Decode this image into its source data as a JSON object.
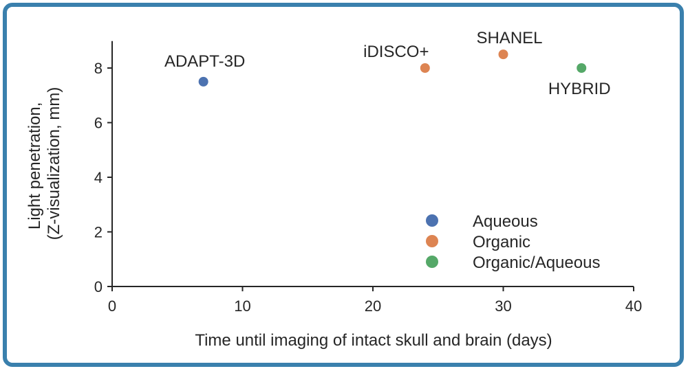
{
  "chart_data": {
    "type": "scatter",
    "title": "",
    "xlabel": "Time until imaging of intact skull and brain (days)",
    "ylabel": [
      "Light penetration,",
      "(Z-visualization, mm)"
    ],
    "xlim": [
      0,
      40
    ],
    "ylim": [
      0,
      9
    ],
    "xticks": [
      0,
      10,
      20,
      30,
      40
    ],
    "yticks": [
      0,
      2,
      4,
      6,
      8
    ],
    "grid": false,
    "legend_position": "lower-right",
    "series": [
      {
        "name": "Aqueous",
        "color": "#4c72b0",
        "points": [
          {
            "x": 7,
            "y": 7.5,
            "label": "ADAPT-3D"
          }
        ]
      },
      {
        "name": "Organic",
        "color": "#dd8452",
        "points": [
          {
            "x": 24,
            "y": 8,
            "label": "iDISCO+"
          },
          {
            "x": 30,
            "y": 8.5,
            "label": "SHANEL"
          }
        ]
      },
      {
        "name": "Organic/Aqueous",
        "color": "#55a868",
        "points": [
          {
            "x": 36,
            "y": 8,
            "label": "HYBRID"
          }
        ]
      }
    ]
  }
}
